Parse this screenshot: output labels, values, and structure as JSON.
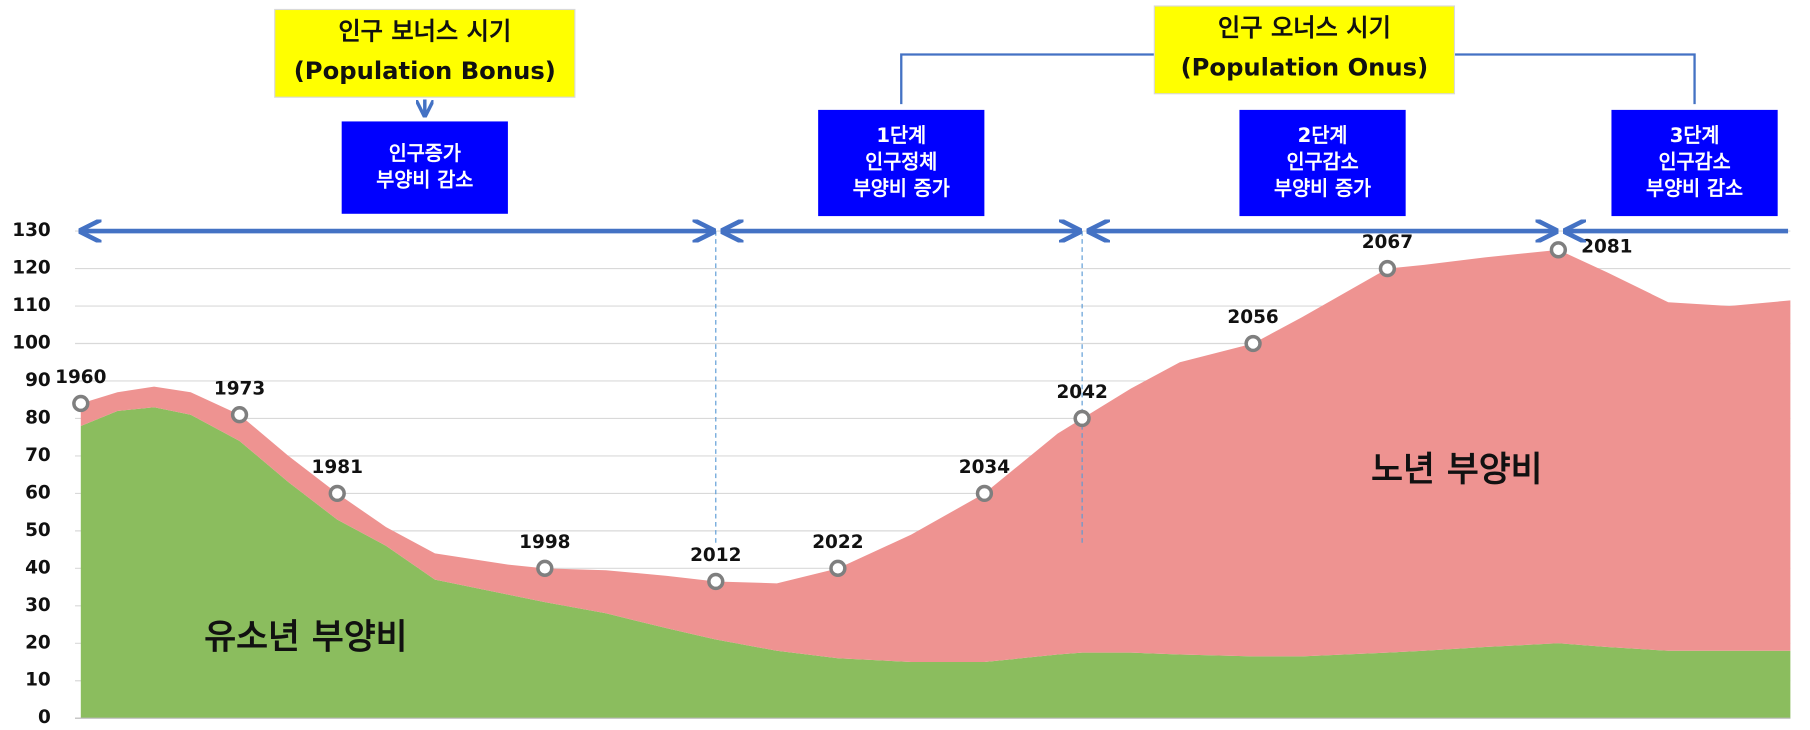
{
  "chart_data": {
    "type": "stacked-area",
    "x": [
      1960,
      1963,
      1966,
      1969,
      1973,
      1977,
      1981,
      1985,
      1989,
      1995,
      1998,
      2003,
      2008,
      2012,
      2017,
      2022,
      2028,
      2034,
      2040,
      2042,
      2046,
      2050,
      2056,
      2060,
      2067,
      2070,
      2075,
      2081,
      2085,
      2090,
      2095,
      2100
    ],
    "series": [
      {
        "name": "유소년 부양비",
        "color": "#8bbd5e",
        "values": [
          78,
          82,
          83,
          81,
          74,
          63,
          53,
          46,
          37,
          33,
          31,
          28,
          24,
          21,
          18,
          16,
          15,
          15,
          17,
          17.5,
          17.5,
          17,
          16.5,
          16.5,
          17.5,
          18,
          19,
          20,
          19,
          18,
          18,
          18
        ]
      },
      {
        "name": "노년 부양비",
        "color": "#ee9391",
        "values": [
          6,
          5,
          5.5,
          6,
          7,
          7,
          7,
          5,
          7,
          8,
          9,
          11.5,
          14,
          15.5,
          18,
          24,
          34,
          45,
          59,
          62.5,
          70.5,
          78,
          83.5,
          90.5,
          102.5,
          103,
          104,
          105,
          100,
          93,
          92,
          93.5
        ]
      }
    ],
    "xlim": [
      1960,
      2100
    ],
    "ylim": [
      0,
      130
    ],
    "yticks": [
      0,
      10,
      20,
      30,
      40,
      50,
      60,
      70,
      80,
      90,
      100,
      110,
      120,
      130
    ],
    "grid": true,
    "markers": [
      1960,
      1973,
      1981,
      1998,
      2012,
      2022,
      2034,
      2042,
      2056,
      2067,
      2081
    ],
    "dividers": [
      2012,
      2042
    ],
    "phases": [
      {
        "lines": [
          "인구증가",
          "부양비 감소"
        ],
        "start": 1960,
        "end": 2012
      },
      {
        "lines": [
          "1단계",
          "인구정체",
          "부양비 증가"
        ],
        "start": 2012,
        "end": 2042
      },
      {
        "lines": [
          "2단계",
          "인구감소",
          "부양비 증가"
        ],
        "start": 2042,
        "end": 2081
      },
      {
        "lines": [
          "3단계",
          "인구감소",
          "부양비 감소"
        ],
        "start": 2081,
        "end": 2100
      }
    ],
    "periods": [
      {
        "lines": [
          "인구 보너스 시기",
          "(Population Bonus)"
        ]
      },
      {
        "lines": [
          "인구 오너스 시기",
          "(Population Onus)"
        ]
      }
    ]
  }
}
